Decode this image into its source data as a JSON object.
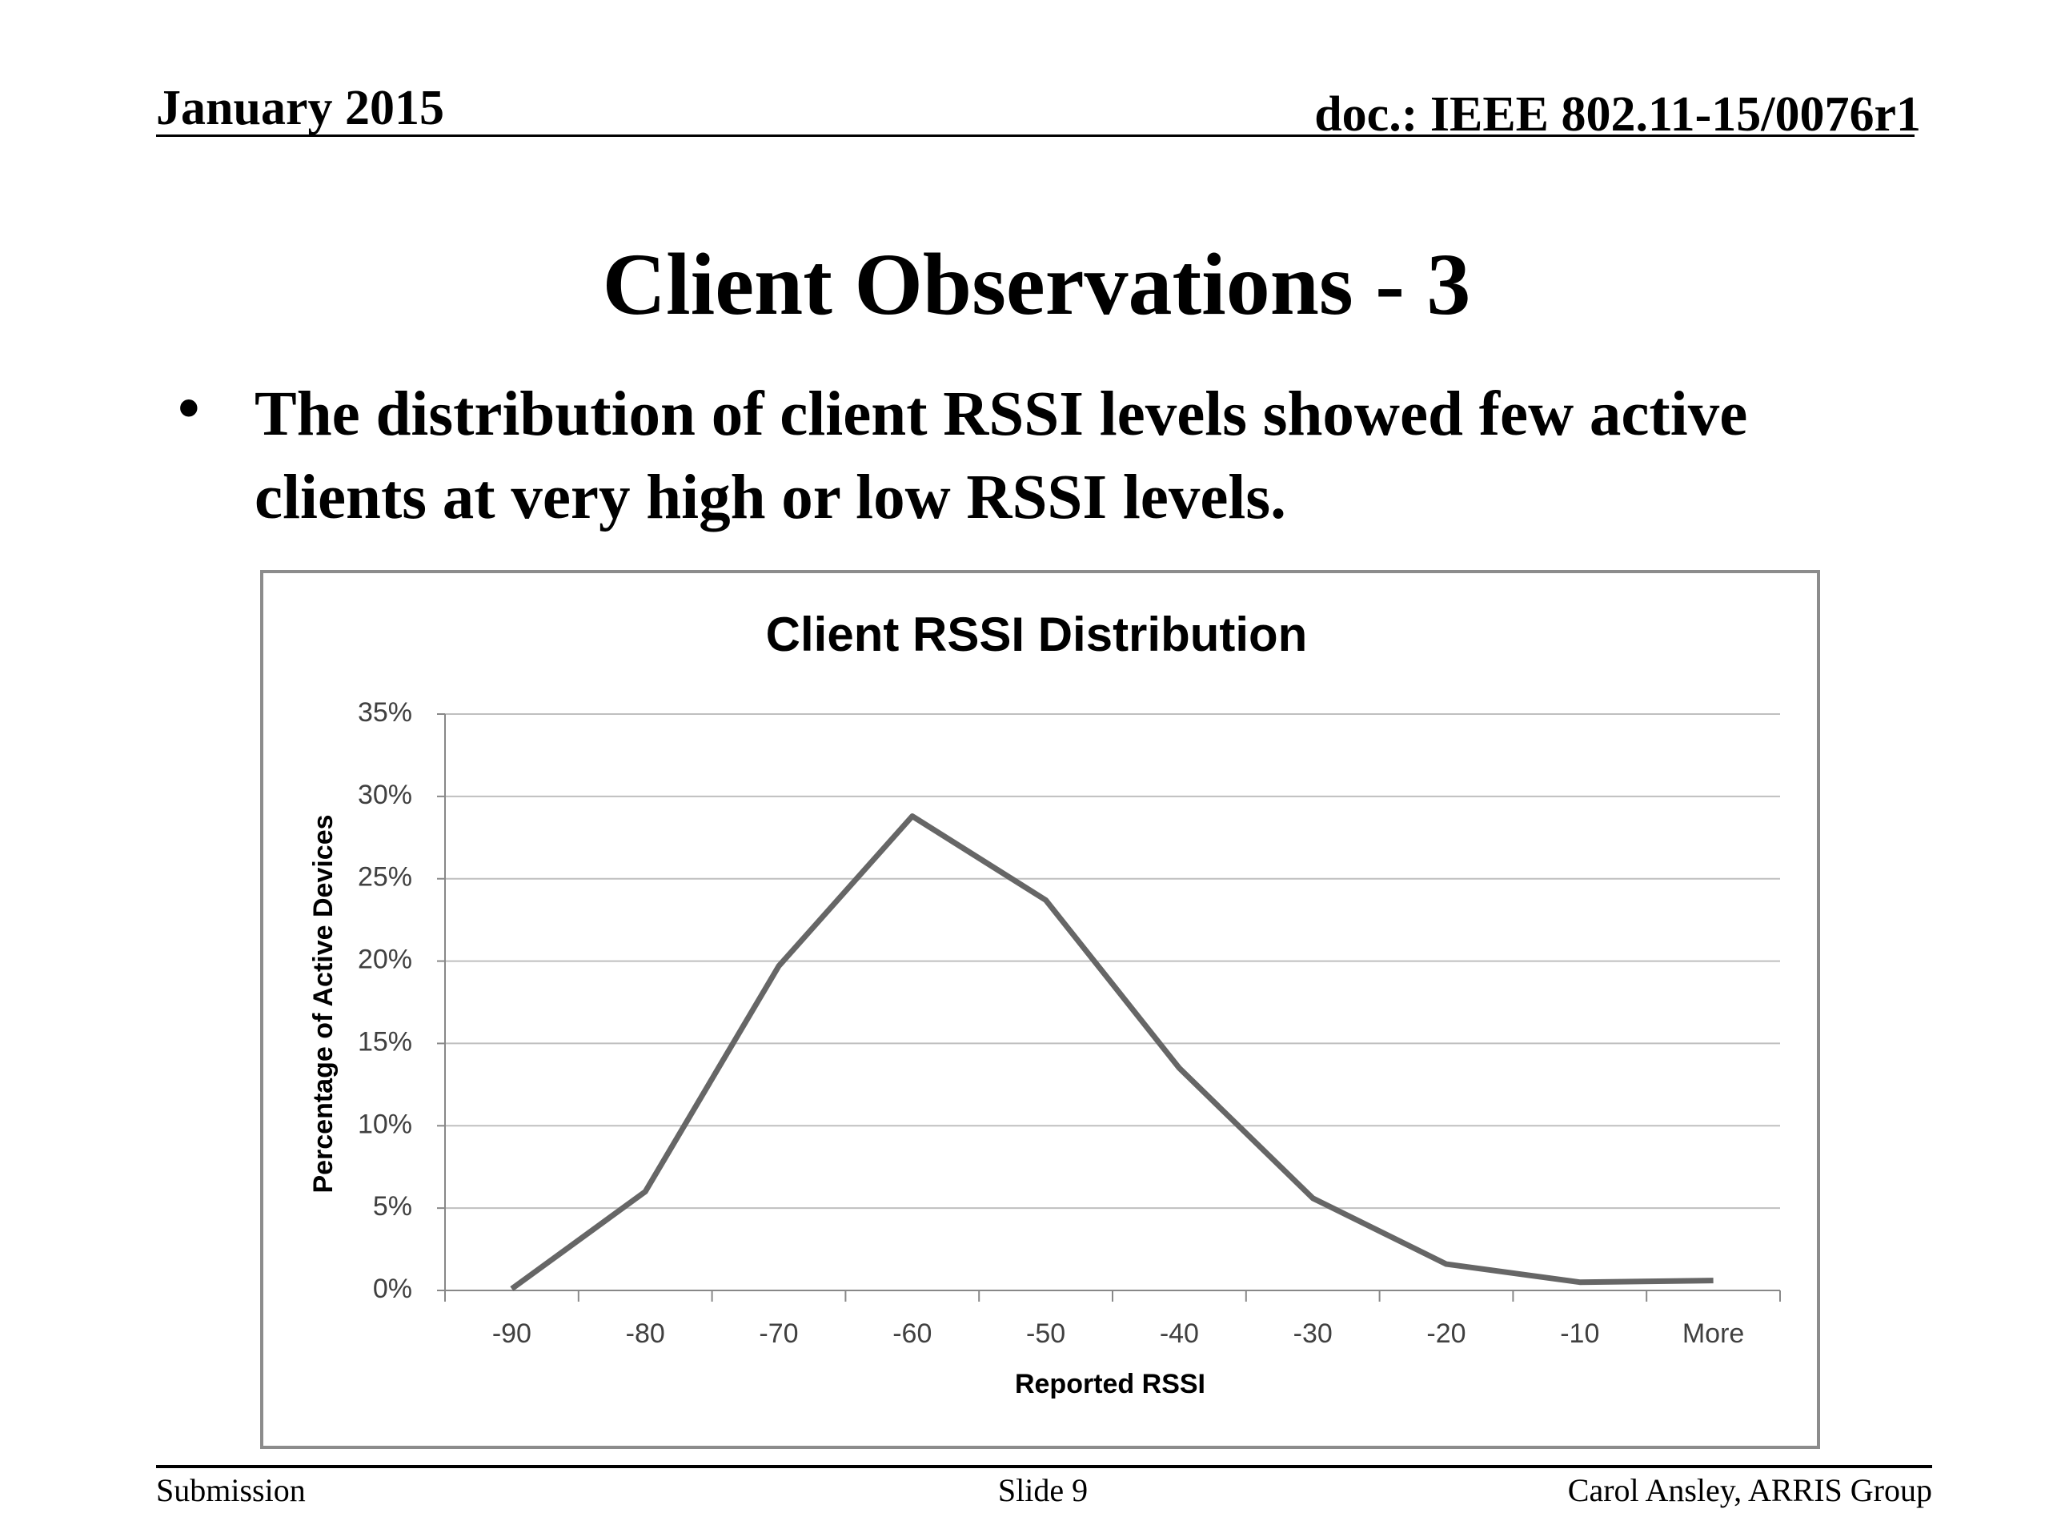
{
  "header": {
    "date": "January 2015",
    "doc": "doc.: IEEE 802.11-15/0076r1"
  },
  "title": "Client Observations - 3",
  "bullets": [
    "The distribution of client RSSI levels showed few active clients at very high or low RSSI levels."
  ],
  "chart_data": {
    "type": "line",
    "title": "Client RSSI Distribution",
    "x_label": "Reported RSSI",
    "y_label": "Percentage of Active Devices",
    "categories": [
      "-90",
      "-80",
      "-70",
      "-60",
      "-50",
      "-40",
      "-30",
      "-20",
      "-10",
      "More"
    ],
    "series": [
      {
        "name": "Percentage of Active Devices",
        "color": "#666666",
        "values": [
          0.1,
          6,
          19.7,
          28.8,
          23.7,
          13.5,
          5.6,
          1.6,
          0.5,
          0.6
        ]
      }
    ],
    "ylim": [
      0,
      35
    ],
    "yticks": [
      {
        "value": 0,
        "label": "0%"
      },
      {
        "value": 5,
        "label": "5%"
      },
      {
        "value": 10,
        "label": "10%"
      },
      {
        "value": 15,
        "label": "15%"
      },
      {
        "value": 20,
        "label": "20%"
      },
      {
        "value": 25,
        "label": "25%"
      },
      {
        "value": 30,
        "label": "30%"
      },
      {
        "value": 35,
        "label": "35%"
      }
    ],
    "grid": true,
    "legend": false
  },
  "footer": {
    "left": "Submission",
    "center": "Slide 9",
    "right": "Carol Ansley, ARRIS Group"
  }
}
